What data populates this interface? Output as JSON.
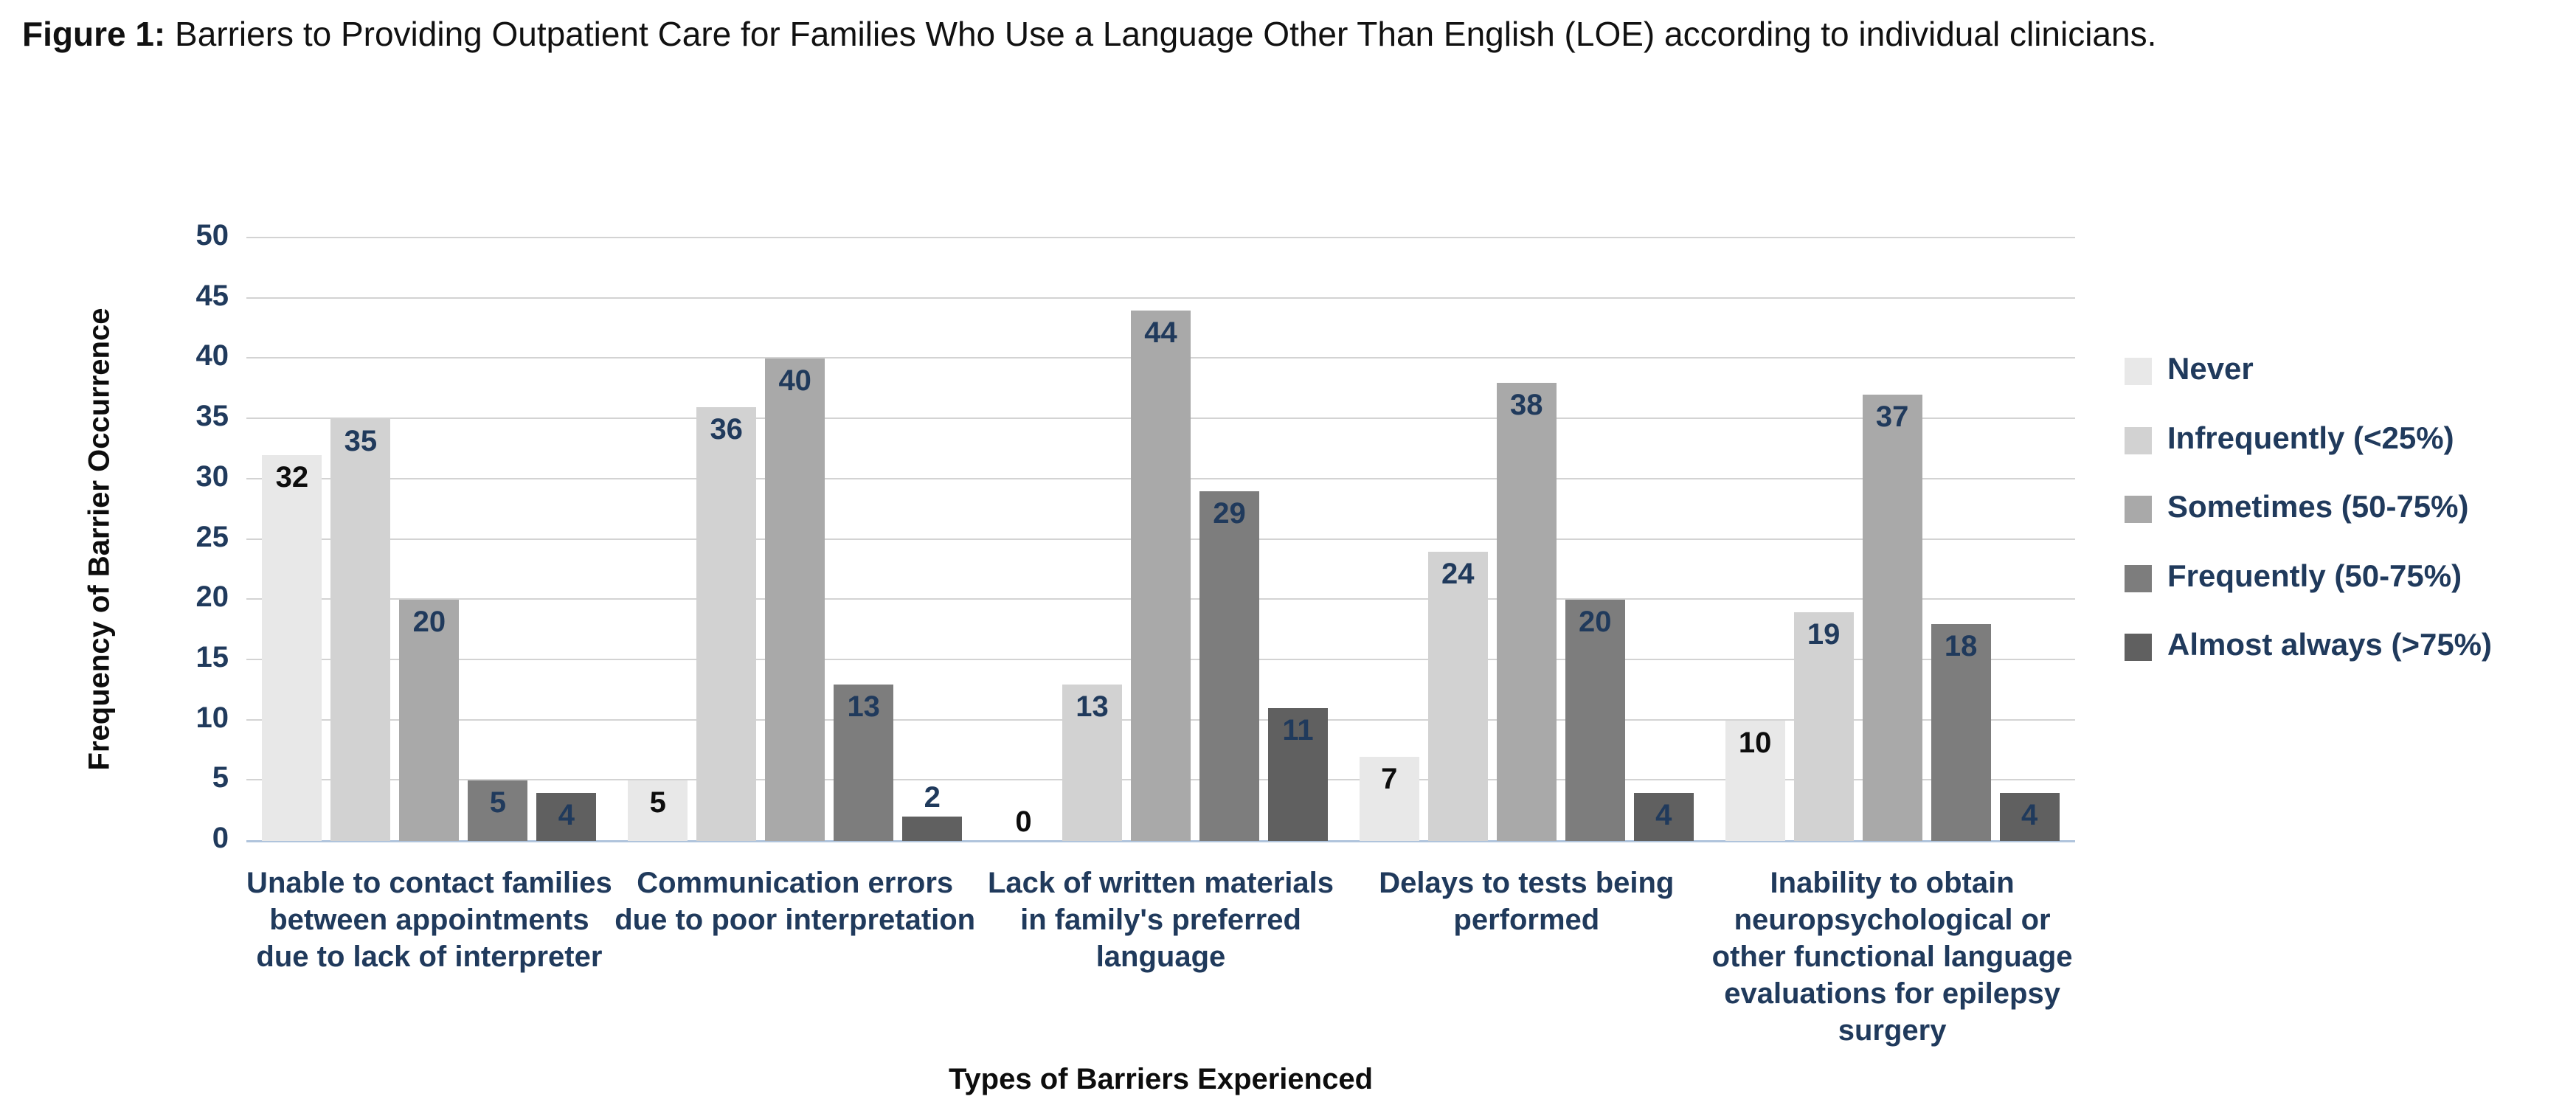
{
  "caption": {
    "label": "Figure 1:",
    "text": "Barriers to Providing Outpatient Care for Families Who Use a Language Other Than English (LOE) according to individual clinicians."
  },
  "chart_data": {
    "type": "bar",
    "title": "",
    "xlabel": "Types of Barriers Experienced",
    "ylabel": "Frequency of Barrier Occurrence",
    "ylim": [
      0,
      50
    ],
    "yticks": [
      0,
      5,
      10,
      15,
      20,
      25,
      30,
      35,
      40,
      45,
      50
    ],
    "grid": true,
    "legend_position": "right",
    "categories": [
      "Unable to contact families between appointments due to lack of interpreter",
      "Communication errors due to poor interpretation",
      "Lack of written materials in family's preferred language",
      "Delays to tests being performed",
      "Inability to obtain neuropsychological or other functional language evaluations for epilepsy surgery"
    ],
    "category_lines": [
      [
        "Unable to contact families",
        "between appointments",
        "due to lack of interpreter"
      ],
      [
        "Communication errors",
        "due to poor interpretation"
      ],
      [
        "Lack of written materials",
        "in family's preferred",
        "language"
      ],
      [
        "Delays to tests being",
        "performed"
      ],
      [
        "Inability to obtain",
        "neuropsychological or",
        "other functional language",
        "evaluations for epilepsy",
        "surgery"
      ]
    ],
    "series": [
      {
        "name": "Never",
        "color": "#e8e8e8",
        "label_color": "#0d0d0d",
        "values": [
          32,
          5,
          0,
          7,
          10
        ]
      },
      {
        "name": "Infrequently (<25%)",
        "color": "#d2d2d2",
        "label_color": "#203a5c",
        "values": [
          35,
          36,
          13,
          24,
          19
        ]
      },
      {
        "name": "Sometimes (50-75%)",
        "color": "#a9a9a9",
        "label_color": "#203a5c",
        "values": [
          20,
          40,
          44,
          38,
          37
        ]
      },
      {
        "name": "Frequently (50-75%)",
        "color": "#7d7d7d",
        "label_color": "#203a5c",
        "values": [
          5,
          13,
          29,
          20,
          18
        ]
      },
      {
        "name": "Almost always (>75%)",
        "color": "#606060",
        "label_color": "#203a5c",
        "values": [
          4,
          2,
          11,
          4,
          4
        ]
      }
    ]
  },
  "colors": {
    "navy_text": "#203a5c",
    "gridline": "#d3d3d3",
    "axis_baseline": "#b0c4dc",
    "black_text": "#0d0d0d",
    "background": "#ffffff"
  }
}
